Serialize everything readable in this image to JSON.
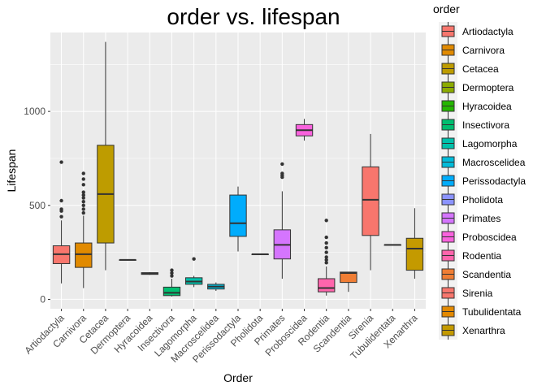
{
  "chart_data": {
    "type": "boxplot",
    "title": "order vs. lifespan",
    "xlabel": "Order",
    "ylabel": "Lifespan",
    "ylim": [
      -50,
      1420
    ],
    "yticks": [
      0,
      500,
      1000
    ],
    "grid": true,
    "legend": {
      "title": "order",
      "position": "right"
    },
    "categories": [
      "Artiodactyla",
      "Carnivora",
      "Cetacea",
      "Dermoptera",
      "Hyracoidea",
      "Insectivora",
      "Lagomorpha",
      "Macroscelidea",
      "Perissodactyla",
      "Pholidota",
      "Primates",
      "Proboscidea",
      "Rodentia",
      "Scandentia",
      "Sirenia",
      "Tubulidentata",
      "Xenarthra"
    ],
    "colors": [
      "#F8766D",
      "#E18A00",
      "#BE9C00",
      "#8CAB00",
      "#24B700",
      "#00BE70",
      "#00C1AB",
      "#00BBDA",
      "#00ACFC",
      "#8B93FF",
      "#D575FE",
      "#F962DD",
      "#FF65AC",
      "#F07E35",
      "#F8766D",
      "#E38900",
      "#C49A00"
    ],
    "boxes": [
      {
        "min": 85,
        "q1": 190,
        "median": 240,
        "q3": 285,
        "max": 420,
        "outliers": [
          440,
          470,
          480,
          525,
          730
        ]
      },
      {
        "min": 60,
        "q1": 170,
        "median": 240,
        "q3": 300,
        "max": 445,
        "outliers": [
          460,
          480,
          500,
          520,
          540,
          555,
          570,
          610,
          640,
          670
        ]
      },
      {
        "min": 155,
        "q1": 300,
        "median": 560,
        "q3": 820,
        "max": 1370,
        "outliers": []
      },
      {
        "min": 210,
        "q1": 210,
        "median": 210,
        "q3": 210,
        "max": 210,
        "outliers": []
      },
      {
        "min": 130,
        "q1": 133,
        "median": 137,
        "q3": 142,
        "max": 145,
        "outliers": []
      },
      {
        "min": 15,
        "q1": 20,
        "median": 35,
        "q3": 65,
        "max": 110,
        "outliers": [
          125,
          140,
          155
        ]
      },
      {
        "min": 65,
        "q1": 80,
        "median": 95,
        "q3": 115,
        "max": 125,
        "outliers": [
          215
        ]
      },
      {
        "min": 45,
        "q1": 55,
        "median": 68,
        "q3": 80,
        "max": 90,
        "outliers": []
      },
      {
        "min": 255,
        "q1": 335,
        "median": 405,
        "q3": 555,
        "max": 600,
        "outliers": []
      },
      {
        "min": 240,
        "q1": 240,
        "median": 240,
        "q3": 240,
        "max": 240,
        "outliers": []
      },
      {
        "min": 110,
        "q1": 215,
        "median": 290,
        "q3": 370,
        "max": 575,
        "outliers": [
          650,
          660,
          670,
          720
        ]
      },
      {
        "min": 845,
        "q1": 870,
        "median": 900,
        "q3": 930,
        "max": 960,
        "outliers": []
      },
      {
        "min": 20,
        "q1": 40,
        "median": 60,
        "q3": 110,
        "max": 175,
        "outliers": [
          195,
          210,
          225,
          250,
          275,
          300,
          330,
          420
        ]
      },
      {
        "min": 40,
        "q1": 90,
        "median": 140,
        "q3": 145,
        "max": 145,
        "outliers": []
      },
      {
        "min": 155,
        "q1": 340,
        "median": 530,
        "q3": 705,
        "max": 880,
        "outliers": []
      },
      {
        "min": 290,
        "q1": 290,
        "median": 290,
        "q3": 290,
        "max": 290,
        "outliers": []
      },
      {
        "min": 110,
        "q1": 155,
        "median": 270,
        "q3": 325,
        "max": 485,
        "outliers": []
      }
    ]
  }
}
